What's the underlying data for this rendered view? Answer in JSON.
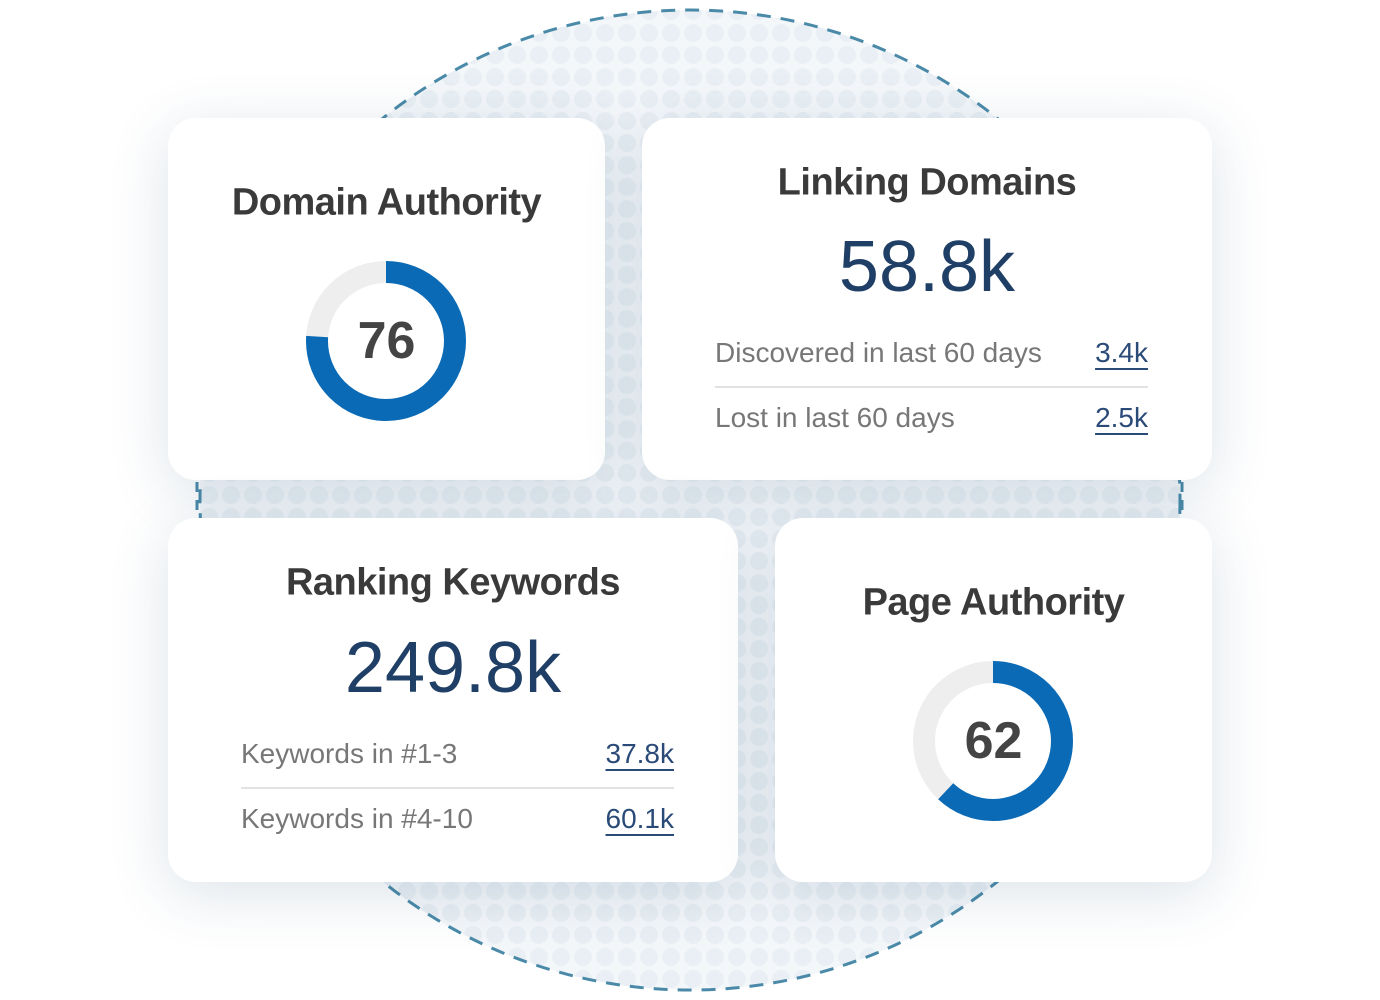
{
  "cards": [
    {
      "title": "Domain Authority",
      "score": 76
    },
    {
      "title": "Linking Domains",
      "total": "58.8k",
      "rows": [
        {
          "label": "Discovered in last 60 days",
          "value": "3.4k"
        },
        {
          "label": "Lost in last 60 days",
          "value": "2.5k"
        }
      ]
    },
    {
      "title": "Ranking Keywords",
      "total": "249.8k",
      "rows": [
        {
          "label": "Keywords in #1-3",
          "value": "37.8k"
        },
        {
          "label": "Keywords in #4-10",
          "value": "60.1k"
        }
      ]
    },
    {
      "title": "Page Authority",
      "score": 62
    }
  ]
}
